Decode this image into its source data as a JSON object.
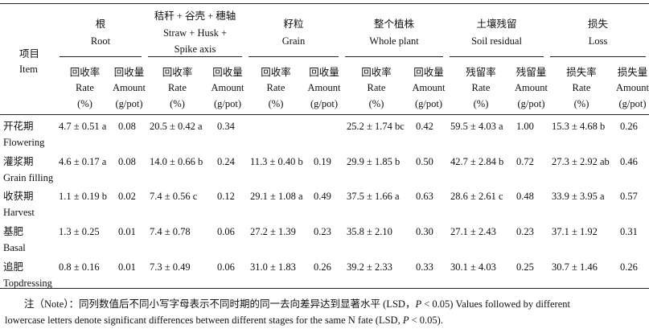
{
  "table": {
    "item_header": {
      "zh": "项目",
      "en": "Item"
    },
    "groups": [
      {
        "zh": "根",
        "en": [
          "Root"
        ]
      },
      {
        "zh": "秸秆 + 谷壳 + 穗轴",
        "en": [
          "Straw + Husk +",
          "Spike axis"
        ]
      },
      {
        "zh": "籽粒",
        "en": [
          "Grain"
        ]
      },
      {
        "zh": "整个植株",
        "en": [
          "Whole plant"
        ]
      },
      {
        "zh": "土壤残留",
        "en": [
          "Soil residual"
        ]
      },
      {
        "zh": "损失",
        "en": [
          "Loss"
        ]
      }
    ],
    "subheaders": [
      {
        "zh": "回收率",
        "en": "Rate",
        "unit": "(%)"
      },
      {
        "zh": "回收量",
        "en": "Amount",
        "unit": "(g/pot)"
      },
      {
        "zh": "回收率",
        "en": "Rate",
        "unit": "(%)"
      },
      {
        "zh": "回收量",
        "en": "Amount",
        "unit": "(g/pot)"
      },
      {
        "zh": "回收率",
        "en": "Rate",
        "unit": "(%)"
      },
      {
        "zh": "回收量",
        "en": "Amount",
        "unit": "(g/pot)"
      },
      {
        "zh": "回收率",
        "en": "Rate",
        "unit": "(%)"
      },
      {
        "zh": "回收量",
        "en": "Amount",
        "unit": "(g/pot)"
      },
      {
        "zh": "残留率",
        "en": "Rate",
        "unit": "(%)"
      },
      {
        "zh": "残留量",
        "en": "Amount",
        "unit": "(g/pot)"
      },
      {
        "zh": "损失率",
        "en": "Rate",
        "unit": "(%)"
      },
      {
        "zh": "损失量",
        "en": "Amount",
        "unit": "(g/pot)"
      }
    ],
    "rows": [
      {
        "zh": "开花期",
        "en": "Flowering",
        "cells": [
          "4.7 ± 0.51 a",
          "0.08",
          "20.5 ± 0.42 a",
          "0.34",
          null,
          null,
          "25.2 ± 1.74 bc",
          "0.42",
          "59.5 ± 4.03 a",
          "1.00",
          "15.3 ± 4.68 b",
          "0.26"
        ]
      },
      {
        "zh": "灌浆期",
        "en": "Grain filling",
        "cells": [
          "4.6 ± 0.17 a",
          "0.08",
          "14.0 ± 0.66 b",
          "0.24",
          "11.3 ± 0.40 b",
          "0.19",
          "29.9 ± 1.85 b",
          "0.50",
          "42.7 ± 2.84 b",
          "0.72",
          "27.3 ± 2.92 ab",
          "0.46"
        ]
      },
      {
        "zh": "收获期",
        "en": "Harvest",
        "cells": [
          "1.1 ± 0.19 b",
          "0.02",
          "7.4 ± 0.56 c",
          "0.12",
          "29.1 ± 1.08 a",
          "0.49",
          "37.5 ± 1.66 a",
          "0.63",
          "28.6 ± 2.61 c",
          "0.48",
          "33.9 ± 3.95 a",
          "0.57"
        ]
      },
      {
        "zh": "基肥",
        "en": "Basal",
        "cells": [
          "1.3 ± 0.25",
          "0.01",
          "7.4 ± 0.78",
          "0.06",
          "27.2 ± 1.39",
          "0.23",
          "35.8 ± 2.10",
          "0.30",
          "27.1 ± 2.43",
          "0.23",
          "37.1 ± 1.92",
          "0.31"
        ]
      },
      {
        "zh": "追肥",
        "en": "Topdressing",
        "cells": [
          "0.8 ± 0.16",
          "0.01",
          "7.3 ± 0.49",
          "0.06",
          "31.0 ± 1.83",
          "0.26",
          "39.2 ± 2.33",
          "0.33",
          "30.1 ± 4.03",
          "0.25",
          "30.7 ± 1.46",
          "0.26"
        ]
      }
    ]
  },
  "note": {
    "line1": [
      "注（Note）：同列数值后不同小写字母表示不同时期的同一去向差异达到显著水平 (LSD，",
      "P",
      " < 0.05) Values followed by different"
    ],
    "line2": [
      "lowercase letters denote significant differences between different stages for the same N fate (LSD, ",
      "P",
      " < 0.05)."
    ]
  }
}
